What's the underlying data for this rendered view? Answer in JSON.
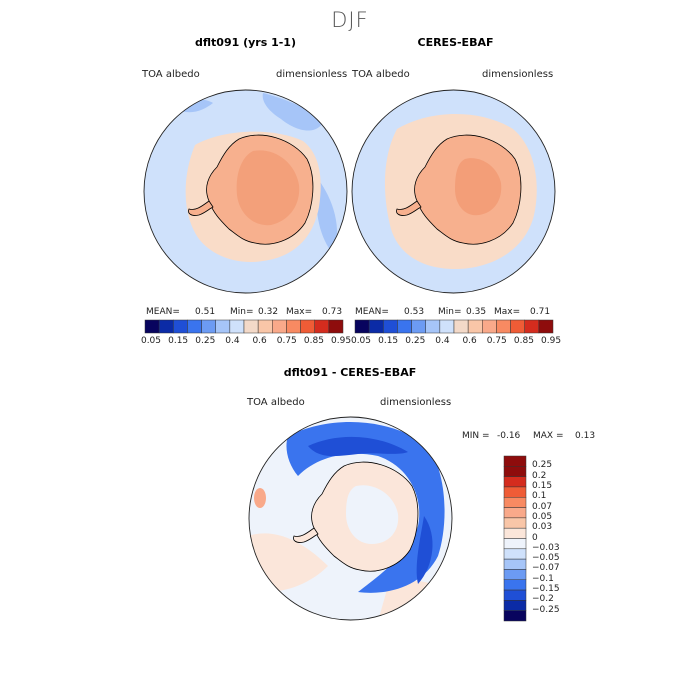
{
  "season": "DJF",
  "colors": {
    "abs_scale": [
      "#08045e",
      "#0b2ba6",
      "#1f4fd6",
      "#3a74ee",
      "#6c9bf3",
      "#a6c5f8",
      "#cfe1fb",
      "#f3d9c8",
      "#f9c6a8",
      "#f9a98a",
      "#f88a62",
      "#ef5c36",
      "#d42c1e",
      "#8e0c0c"
    ],
    "diff_scale": [
      "#08045e",
      "#0b2ba6",
      "#1f4fd6",
      "#3a74ee",
      "#6c9bf3",
      "#a6c5f8",
      "#cfe1fb",
      "#eef3fb",
      "#fbe6da",
      "#f9c6a8",
      "#f9a98a",
      "#f88a62",
      "#ef5c36",
      "#d42c1e",
      "#8e0c0c"
    ]
  },
  "panels": [
    {
      "title": "dflt091 (yrs 1-1)",
      "left_label": "TOA albedo",
      "right_label": "dimensionless",
      "stats": {
        "mean_label": "MEAN=",
        "mean": "0.51",
        "min_label": "Min=",
        "min": "0.32",
        "max_label": "Max=",
        "max": "0.73"
      }
    },
    {
      "title": "CERES-EBAF",
      "left_label": "TOA albedo",
      "right_label": "dimensionless",
      "stats": {
        "mean_label": "MEAN=",
        "mean": "0.53",
        "min_label": "Min=",
        "min": "0.35",
        "max_label": "Max=",
        "max": "0.71"
      }
    }
  ],
  "abs_colorbar": {
    "ticks": [
      "0.05",
      "0.15",
      "0.25",
      "0.4",
      "0.6",
      "0.75",
      "0.85",
      "0.95"
    ]
  },
  "diff_panel": {
    "title": "dflt091 - CERES-EBAF",
    "left_label": "TOA albedo",
    "right_label": "dimensionless",
    "min_label": "MIN =",
    "min": "-0.16",
    "max_label": "MAX =",
    "max": "0.13",
    "ticks": [
      "0.25",
      "0.2",
      "0.15",
      "0.1",
      "0.07",
      "0.05",
      "0.03",
      "0",
      "−0.03",
      "−0.05",
      "−0.07",
      "−0.1",
      "−0.15",
      "−0.2",
      "−0.25"
    ]
  }
}
